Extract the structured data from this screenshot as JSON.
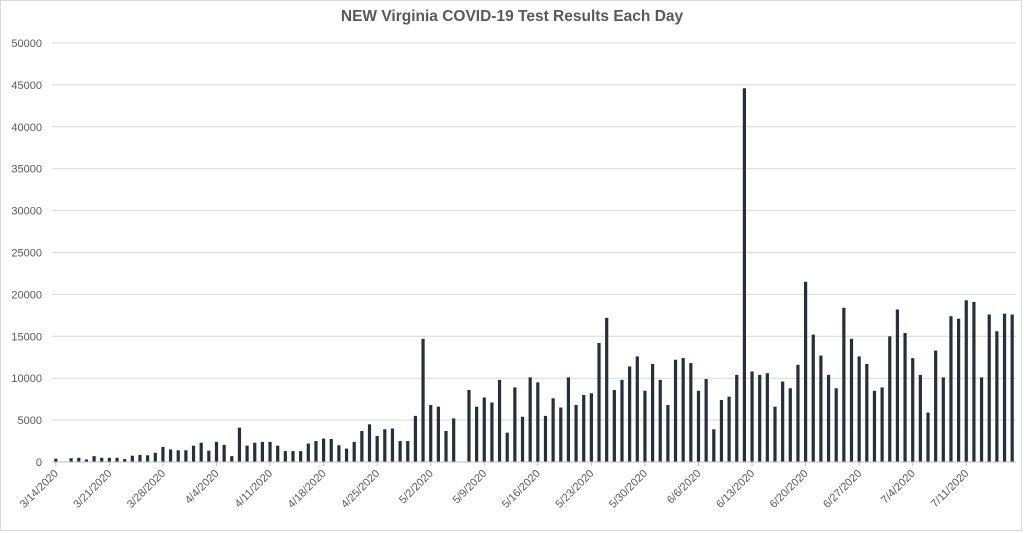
{
  "chart_data": {
    "type": "bar",
    "title": "NEW Virginia COVID-19 Test Results Each Day",
    "xlabel": "",
    "ylabel": "",
    "ylim": [
      0,
      50000
    ],
    "yticks": [
      0,
      5000,
      10000,
      15000,
      20000,
      25000,
      30000,
      35000,
      40000,
      45000,
      50000
    ],
    "grid": true,
    "legend": "none",
    "bar_color": "#262f3a",
    "grid_color": "#d9d9d9",
    "x_tick_labels": [
      "3/14/2020",
      "3/21/2020",
      "3/28/2020",
      "4/4/2020",
      "4/11/2020",
      "4/18/2020",
      "4/25/2020",
      "5/2/2020",
      "5/9/2020",
      "5/16/2020",
      "5/23/2020",
      "5/30/2020",
      "6/6/2020",
      "6/13/2020",
      "6/20/2020",
      "6/27/2020",
      "7/4/2020",
      "7/11/2020"
    ],
    "start_date": "3/14/2020",
    "values": [
      400,
      0,
      450,
      500,
      300,
      700,
      500,
      500,
      500,
      350,
      750,
      850,
      800,
      1100,
      1800,
      1500,
      1400,
      1400,
      1950,
      2300,
      1350,
      2400,
      2050,
      700,
      4100,
      1950,
      2300,
      2400,
      2400,
      1950,
      1300,
      1300,
      1300,
      2200,
      2500,
      2800,
      2750,
      2000,
      1600,
      2400,
      3700,
      4500,
      3100,
      3900,
      4000,
      2500,
      2500,
      5500,
      14700,
      6800,
      6600,
      3700,
      5200,
      0,
      8600,
      6600,
      7700,
      7100,
      9800,
      3500,
      8900,
      5400,
      10100,
      9500,
      5500,
      7600,
      6500,
      10100,
      6800,
      8000,
      8200,
      14200,
      17200,
      8600,
      9800,
      11400,
      12600,
      8500,
      11700,
      9800,
      6800,
      12200,
      12400,
      11800,
      8500,
      9900,
      3900,
      7400,
      7800,
      10400,
      44600,
      10800,
      10400,
      10600,
      6600,
      9600,
      8800,
      11600,
      21500,
      15200,
      12700,
      10400,
      8800,
      18400,
      14700,
      12600,
      11700,
      8500,
      8900,
      15000,
      18200,
      15400,
      12400,
      10400,
      5900,
      13300,
      10100,
      17400,
      17100,
      19300,
      19100,
      10100,
      17600,
      15600,
      17700,
      17600
    ]
  }
}
